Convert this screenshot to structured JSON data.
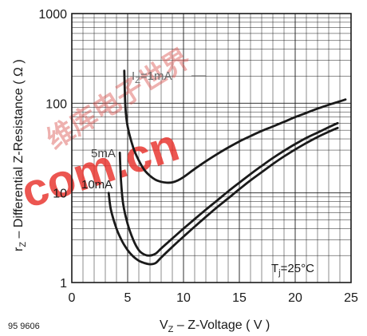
{
  "chart_data": {
    "type": "line",
    "xlabel_main": "V",
    "xlabel_sub": "Z",
    "xlabel_rest": " – Z-Voltage ( V )",
    "ylabel_main": "r",
    "ylabel_sub": "Z",
    "ylabel_rest": " – Differential Z-Resistance ( Ω )",
    "xlim": [
      0,
      25
    ],
    "ylim": [
      1,
      1000
    ],
    "y_scale": "log",
    "x_ticks": [
      "0",
      "5",
      "10",
      "15",
      "20",
      "25"
    ],
    "y_ticks": [
      "1",
      "10",
      "100",
      "1000"
    ],
    "grid": true,
    "annotation": {
      "main": "T",
      "sub": "j",
      "rest": "=25°C"
    },
    "figure_number": "95 9606",
    "series": [
      {
        "name": "I_Z=1mA",
        "label_main": "I",
        "label_sub": "Z",
        "label_rest": "=1mA",
        "color": "#1a1a1a",
        "points": [
          [
            4.7,
            230
          ],
          [
            4.8,
            90
          ],
          [
            5.0,
            55
          ],
          [
            5.5,
            32
          ],
          [
            6.0,
            23
          ],
          [
            6.5,
            18
          ],
          [
            7.0,
            15.5
          ],
          [
            7.5,
            14
          ],
          [
            8.0,
            13.3
          ],
          [
            8.5,
            13.0
          ],
          [
            9.0,
            13.1
          ],
          [
            9.5,
            13.8
          ],
          [
            10,
            15
          ],
          [
            11,
            18.5
          ],
          [
            12,
            22.5
          ],
          [
            13,
            27
          ],
          [
            14,
            32
          ],
          [
            15,
            37.5
          ],
          [
            16,
            43
          ],
          [
            17,
            49
          ],
          [
            18,
            55
          ],
          [
            19,
            62
          ],
          [
            20,
            70
          ],
          [
            21,
            78
          ],
          [
            22,
            87
          ],
          [
            23,
            96
          ],
          [
            24,
            105
          ],
          [
            24.5,
            110
          ]
        ]
      },
      {
        "name": "5mA",
        "label_main": "5mA",
        "color": "#1a1a1a",
        "points": [
          [
            4.3,
            28
          ],
          [
            4.4,
            14
          ],
          [
            4.6,
            7.5
          ],
          [
            5.0,
            4.5
          ],
          [
            5.5,
            3.0
          ],
          [
            6.0,
            2.3
          ],
          [
            6.5,
            2.05
          ],
          [
            7.0,
            2.0
          ],
          [
            7.5,
            2.1
          ],
          [
            8.0,
            2.4
          ],
          [
            9.0,
            3.1
          ],
          [
            10,
            4.0
          ],
          [
            11,
            5.1
          ],
          [
            12,
            6.5
          ],
          [
            13,
            8.2
          ],
          [
            14,
            10.4
          ],
          [
            15,
            13
          ],
          [
            16,
            16.2
          ],
          [
            17,
            20
          ],
          [
            18,
            24.5
          ],
          [
            19,
            29.5
          ],
          [
            20,
            35
          ],
          [
            21,
            41
          ],
          [
            22,
            47
          ],
          [
            23,
            54
          ],
          [
            23.8,
            60
          ]
        ]
      },
      {
        "name": "10mA",
        "label_main": "10mA",
        "color": "#1a1a1a",
        "points": [
          [
            3.3,
            10
          ],
          [
            3.5,
            6.5
          ],
          [
            4.0,
            4.0
          ],
          [
            4.5,
            2.9
          ],
          [
            5.0,
            2.3
          ],
          [
            5.5,
            1.95
          ],
          [
            6.0,
            1.75
          ],
          [
            6.5,
            1.65
          ],
          [
            7.0,
            1.6
          ],
          [
            7.5,
            1.65
          ],
          [
            8.0,
            1.9
          ],
          [
            9.0,
            2.5
          ],
          [
            10,
            3.25
          ],
          [
            11,
            4.2
          ],
          [
            12,
            5.4
          ],
          [
            13,
            6.9
          ],
          [
            14,
            8.7
          ],
          [
            15,
            11
          ],
          [
            16,
            13.8
          ],
          [
            17,
            17
          ],
          [
            18,
            21
          ],
          [
            19,
            25.5
          ],
          [
            20,
            30.5
          ],
          [
            21,
            36
          ],
          [
            22,
            42
          ],
          [
            23,
            48
          ],
          [
            23.8,
            53
          ]
        ]
      }
    ]
  },
  "watermark": {
    "text_latin": "com.cn",
    "text_cjk": "维库电子世界",
    "color": "#e8312c"
  }
}
